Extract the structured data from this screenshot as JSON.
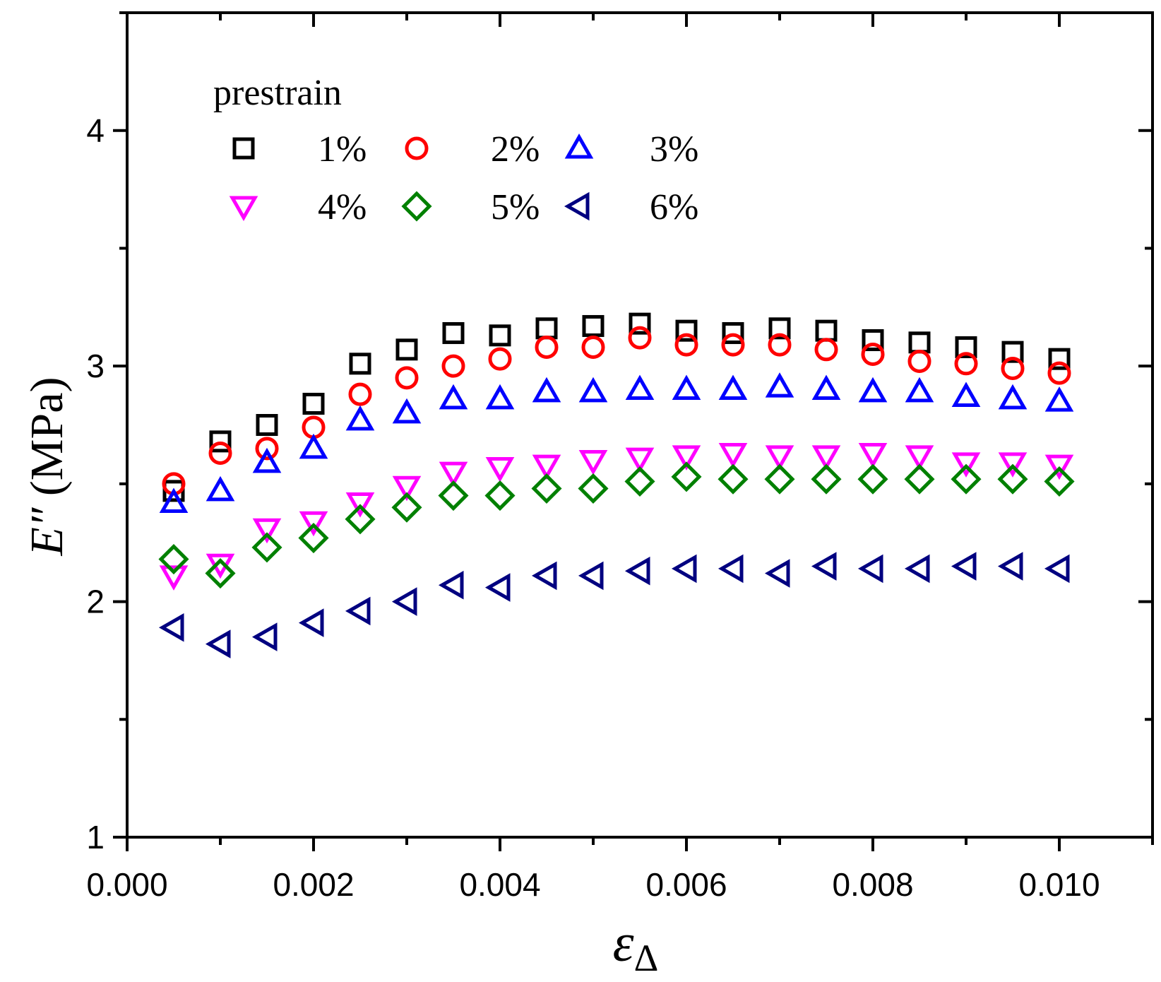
{
  "chart_data": {
    "type": "scatter",
    "title": "",
    "xlabel": {
      "symbol": "ε",
      "subscript": "Δ"
    },
    "ylabel": {
      "symbol": "E″",
      "unit": " (MPa)"
    },
    "xlim": [
      0.0,
      0.011
    ],
    "ylim": [
      1,
      4.5
    ],
    "xticks": [
      0.0,
      0.002,
      0.004,
      0.006,
      0.008,
      0.01
    ],
    "xtick_labels": [
      "0.000",
      "0.002",
      "0.004",
      "0.006",
      "0.008",
      "0.010"
    ],
    "yticks": [
      1,
      2,
      3,
      4
    ],
    "ytick_labels": [
      "1",
      "2",
      "3",
      "4"
    ],
    "grid": false,
    "legend": {
      "title": "prestrain",
      "placement": "top-left"
    },
    "x": [
      0.0005,
      0.001,
      0.0015,
      0.002,
      0.0025,
      0.003,
      0.0035,
      0.004,
      0.0045,
      0.005,
      0.0055,
      0.006,
      0.0065,
      0.007,
      0.0075,
      0.008,
      0.0085,
      0.009,
      0.0095,
      0.01
    ],
    "series": [
      {
        "name": "1%",
        "marker": "square",
        "color": "#000000",
        "values": [
          2.47,
          2.68,
          2.75,
          2.84,
          3.01,
          3.07,
          3.14,
          3.13,
          3.16,
          3.17,
          3.18,
          3.15,
          3.14,
          3.16,
          3.15,
          3.11,
          3.1,
          3.08,
          3.06,
          3.03
        ]
      },
      {
        "name": "2%",
        "marker": "circle",
        "color": "#ff0000",
        "values": [
          2.5,
          2.63,
          2.65,
          2.74,
          2.88,
          2.95,
          3.0,
          3.03,
          3.08,
          3.08,
          3.12,
          3.09,
          3.09,
          3.09,
          3.07,
          3.05,
          3.02,
          3.01,
          2.99,
          2.97
        ]
      },
      {
        "name": "3%",
        "marker": "triangle-up",
        "color": "#0000ff",
        "values": [
          2.42,
          2.47,
          2.59,
          2.65,
          2.77,
          2.8,
          2.86,
          2.86,
          2.89,
          2.89,
          2.9,
          2.9,
          2.9,
          2.91,
          2.9,
          2.89,
          2.89,
          2.87,
          2.86,
          2.85
        ]
      },
      {
        "name": "4%",
        "marker": "triangle-down",
        "color": "#ff00ff",
        "values": [
          2.11,
          2.16,
          2.31,
          2.34,
          2.42,
          2.49,
          2.55,
          2.57,
          2.58,
          2.6,
          2.61,
          2.62,
          2.63,
          2.62,
          2.62,
          2.63,
          2.62,
          2.59,
          2.59,
          2.58
        ]
      },
      {
        "name": "5%",
        "marker": "diamond",
        "color": "#008000",
        "values": [
          2.18,
          2.12,
          2.23,
          2.27,
          2.35,
          2.4,
          2.45,
          2.45,
          2.48,
          2.48,
          2.51,
          2.53,
          2.52,
          2.52,
          2.52,
          2.52,
          2.52,
          2.52,
          2.52,
          2.51
        ]
      },
      {
        "name": "6%",
        "marker": "triangle-left",
        "color": "#000080",
        "values": [
          1.89,
          1.82,
          1.85,
          1.91,
          1.96,
          2.0,
          2.07,
          2.06,
          2.11,
          2.11,
          2.13,
          2.14,
          2.14,
          2.12,
          2.15,
          2.14,
          2.14,
          2.15,
          2.15,
          2.14
        ]
      }
    ]
  }
}
